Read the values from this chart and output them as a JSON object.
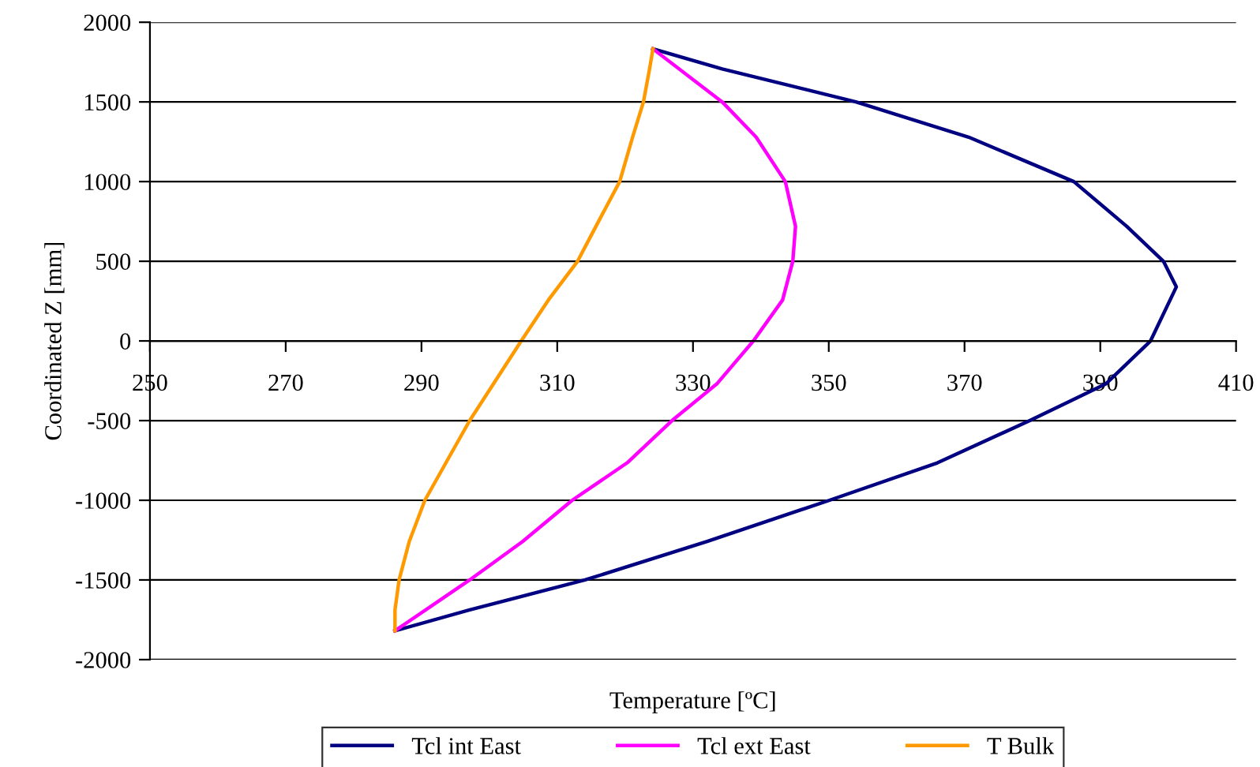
{
  "chart_data": {
    "type": "line",
    "xlabel": "Temperature [ºC]",
    "ylabel": "Coordinated Z [mm]",
    "xlim": [
      250,
      410
    ],
    "xticks": [
      250,
      270,
      290,
      310,
      330,
      350,
      370,
      390,
      410
    ],
    "ylim": [
      -2000,
      2000
    ],
    "yticks": [
      -2000,
      -1500,
      -1000,
      -500,
      0,
      500,
      1000,
      1500,
      2000
    ],
    "grid": "y",
    "legend": "bottom",
    "marker": "none",
    "line_style": "solid",
    "series": [
      {
        "name": "Tcl int East",
        "color": "#000080",
        "x": [
          324.1,
          334.3,
          354.0,
          370.6,
          386.1,
          393.9,
          399.3,
          401.2,
          397.4,
          390.8,
          379.6,
          366.0,
          350.1,
          332.0,
          314.1,
          297.1,
          286.1
        ],
        "values": [
          1833,
          1707,
          1500,
          1279,
          1000,
          719,
          500,
          339,
          0,
          -270,
          -500,
          -765,
          -1000,
          -1259,
          -1500,
          -1688,
          -1819
        ]
      },
      {
        "name": "Tcl ext East",
        "color": "#ff00ff",
        "x": [
          324.1,
          334.3,
          339.3,
          343.6,
          345.1,
          344.7,
          343.2,
          338.9,
          333.5,
          326.9,
          320.3,
          312.2,
          304.9,
          297.1,
          286.1
        ],
        "values": [
          1833,
          1500,
          1279,
          1000,
          719,
          500,
          257,
          0,
          -270,
          -500,
          -765,
          -1000,
          -1259,
          -1500,
          -1819
        ]
      },
      {
        "name": "T Bulk",
        "color": "#ff9900",
        "x": [
          324.1,
          323.6,
          322.7,
          321.1,
          319.2,
          315.7,
          313.0,
          308.7,
          304.7,
          300.6,
          297.1,
          293.6,
          290.5,
          288.2,
          286.7,
          286.1,
          286.1
        ],
        "values": [
          1833,
          1707,
          1500,
          1279,
          1000,
          719,
          500,
          257,
          0,
          -270,
          -500,
          -765,
          -1000,
          -1259,
          -1500,
          -1688,
          -1819
        ]
      }
    ]
  }
}
